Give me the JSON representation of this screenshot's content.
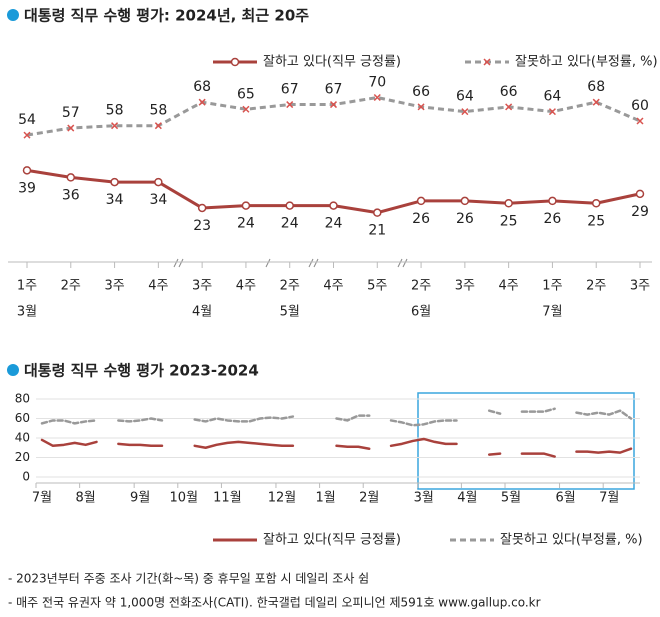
{
  "chart_data": [
    {
      "type": "line",
      "title": "대통령 직무 수행 평가: 2024년, 최근 20주",
      "categories": [
        "1주",
        "2주",
        "3주",
        "4주",
        "3주",
        "4주",
        "2주",
        "4주",
        "5주",
        "2주",
        "3주",
        "4주",
        "1주",
        "2주",
        "3주"
      ],
      "category_groups": [
        "3월",
        null,
        null,
        null,
        "4월",
        null,
        "5월",
        null,
        null,
        "6월",
        null,
        null,
        "7월",
        null,
        null
      ],
      "series": [
        {
          "name": "잘하고 있다(직무 긍정률)",
          "color": "#a9413c",
          "marker": "circle",
          "values": [
            39,
            36,
            34,
            34,
            23,
            24,
            24,
            24,
            21,
            26,
            26,
            25,
            26,
            25,
            29
          ]
        },
        {
          "name": "잘못하고 있다(부정률, %)",
          "color": "#999999",
          "marker_color": "#d9534f",
          "marker": "x",
          "dashed": true,
          "values": [
            54,
            57,
            58,
            58,
            68,
            65,
            67,
            67,
            70,
            66,
            64,
            66,
            64,
            68,
            60
          ]
        }
      ],
      "ylim": [
        0,
        80
      ]
    },
    {
      "type": "line",
      "title": "대통령 직무 수행 평가 2023-2024",
      "categories": [
        "7월",
        null,
        null,
        null,
        "8월",
        null,
        null,
        null,
        null,
        "9월",
        null,
        null,
        null,
        "10월",
        null,
        null,
        null,
        "11월",
        null,
        null,
        null,
        null,
        "12월",
        null,
        null,
        null,
        "1월",
        null,
        null,
        null,
        "2월",
        null,
        null,
        null,
        null,
        "3월",
        null,
        null,
        null,
        "4월",
        null,
        null,
        null,
        "5월",
        null,
        null,
        null,
        null,
        "6월",
        null,
        null,
        null,
        "7월",
        null,
        null
      ],
      "series": [
        {
          "name": "잘하고 있다(직무 긍정률)",
          "color": "#a9413c",
          "values": [
            38,
            32,
            33,
            35,
            33,
            36,
            null,
            34,
            33,
            33,
            32,
            32,
            null,
            null,
            32,
            30,
            33,
            35,
            36,
            35,
            34,
            33,
            32,
            32,
            null,
            null,
            null,
            32,
            31,
            31,
            29,
            null,
            32,
            34,
            37,
            39,
            36,
            34,
            34,
            null,
            null,
            23,
            24,
            null,
            24,
            24,
            24,
            21,
            null,
            26,
            26,
            25,
            26,
            25,
            29
          ]
        },
        {
          "name": "잘못하고 있다(부정률, %)",
          "color": "#999999",
          "dashed": true,
          "values": [
            55,
            58,
            58,
            55,
            57,
            58,
            null,
            58,
            57,
            58,
            60,
            58,
            null,
            null,
            59,
            57,
            60,
            58,
            57,
            57,
            60,
            61,
            60,
            62,
            null,
            null,
            null,
            60,
            58,
            63,
            63,
            null,
            58,
            56,
            53,
            54,
            57,
            58,
            58,
            null,
            null,
            68,
            65,
            null,
            67,
            67,
            67,
            70,
            null,
            66,
            64,
            66,
            64,
            68,
            60
          ]
        }
      ],
      "ylim": [
        0,
        80
      ],
      "yticks": [
        0,
        20,
        40,
        60,
        80
      ],
      "grid": true
    }
  ],
  "notes": [
    "- 2023년부터 주중 조사 기간(화~목) 중 휴무일 포함 시 데일리 조사 쉼",
    "- 매주 전국 유권자 약 1,000명 전화조사(CATI). 한국갤럽 데일리 오피니언 제591호 www.gallup.co.kr"
  ]
}
